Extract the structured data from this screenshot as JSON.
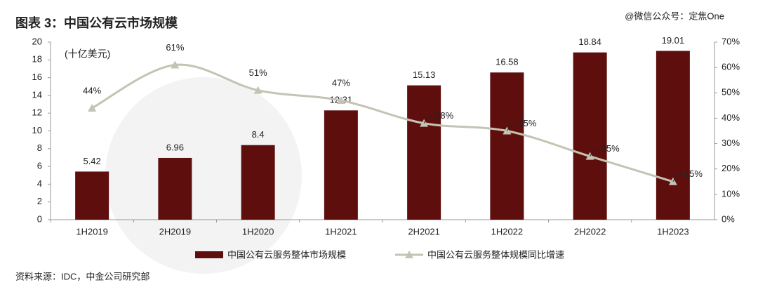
{
  "title": "图表 3：中国公有云市场规模",
  "watermark": "@微信公众号：定焦One",
  "source": "资料来源：IDC，中金公司研究部",
  "chart_data": {
    "type": "bar",
    "y_label": "(十亿美元)",
    "categories": [
      "1H2019",
      "2H2019",
      "1H2020",
      "1H2021",
      "2H2021",
      "1H2022",
      "2H2022",
      "1H2023"
    ],
    "series": [
      {
        "name": "中国公有云服务整体市场规模",
        "type": "bar",
        "color": "#5e0f0d",
        "values": [
          5.42,
          6.96,
          8.4,
          12.31,
          15.13,
          16.58,
          18.84,
          19.01
        ]
      },
      {
        "name": "中国公有云服务整体规模同比增速",
        "type": "line",
        "axis": "y2",
        "color": "#c5c3b3",
        "values": [
          44,
          61,
          51,
          47,
          38,
          35,
          25,
          15
        ],
        "value_labels": [
          "44%",
          "61%",
          "51%",
          "47%",
          "38%",
          "35%",
          "25%",
          "15%"
        ]
      }
    ],
    "ylim": [
      0,
      20
    ],
    "yticks": [
      0,
      2,
      4,
      6,
      8,
      10,
      12,
      14,
      16,
      18,
      20
    ],
    "y2lim": [
      0,
      70
    ],
    "y2ticks": [
      {
        "value": 0,
        "label": "0%"
      },
      {
        "value": 10,
        "label": "10%"
      },
      {
        "value": 20,
        "label": "20%"
      },
      {
        "value": 30,
        "label": "30%"
      },
      {
        "value": 40,
        "label": "40%"
      },
      {
        "value": 50,
        "label": "50%"
      },
      {
        "value": 60,
        "label": "60%"
      },
      {
        "value": 70,
        "label": "70%"
      }
    ]
  }
}
